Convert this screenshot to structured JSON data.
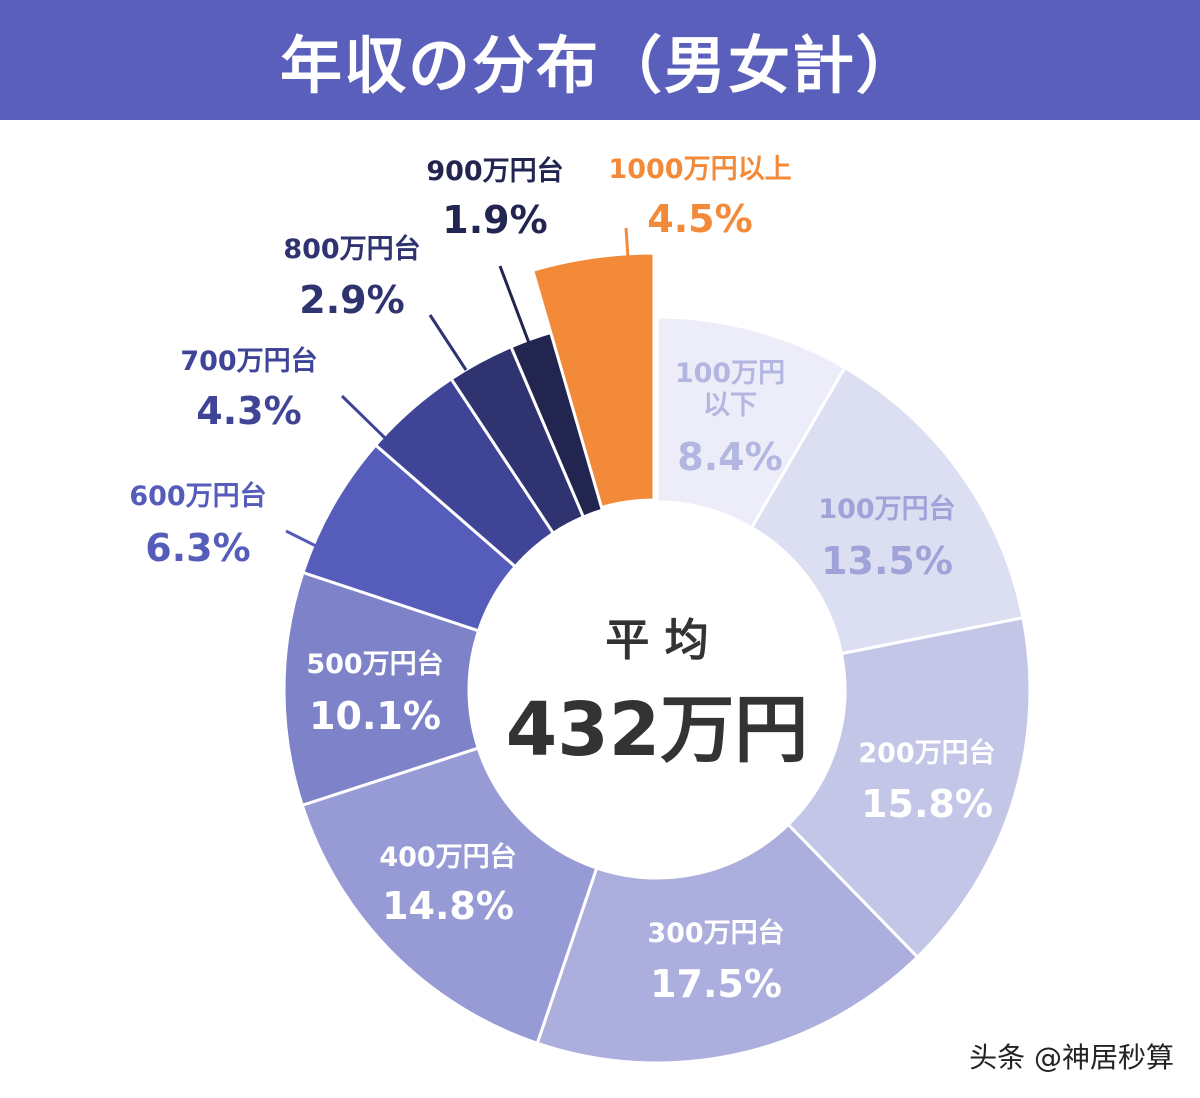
{
  "header": {
    "title": "年収の分布（男女計）"
  },
  "center": {
    "label": "平 均",
    "value": "432万円"
  },
  "watermark": "头条 @神居秒算",
  "chart_data": {
    "type": "pie",
    "variant": "donut",
    "unit": "%",
    "slices": [
      {
        "category": "100万円以下",
        "label_lines": [
          "100万円",
          "以下"
        ],
        "value": 8.4,
        "value_label": "8.4%",
        "color": "#ecedf8",
        "label_color": "#b3b6e0"
      },
      {
        "category": "100万円台",
        "label_lines": [
          "100万円台"
        ],
        "value": 13.5,
        "value_label": "13.5%",
        "color": "#dcdef2",
        "label_color": "#9fa3d8"
      },
      {
        "category": "200万円台",
        "label_lines": [
          "200万円台"
        ],
        "value": 15.8,
        "value_label": "15.8%",
        "color": "#c4c6e8",
        "label_color": "#ffffff"
      },
      {
        "category": "300万円台",
        "label_lines": [
          "300万円台"
        ],
        "value": 17.5,
        "value_label": "17.5%",
        "color": "#acaedd",
        "label_color": "#ffffff"
      },
      {
        "category": "400万円台",
        "label_lines": [
          "400万円台"
        ],
        "value": 14.8,
        "value_label": "14.8%",
        "color": "#979bd5",
        "label_color": "#ffffff"
      },
      {
        "category": "500万円台",
        "label_lines": [
          "500万円台"
        ],
        "value": 10.1,
        "value_label": "10.1%",
        "color": "#7d82c9",
        "label_color": "#ffffff"
      },
      {
        "category": "600万円台",
        "label_lines": [
          "600万円台"
        ],
        "value": 6.3,
        "value_label": "6.3%",
        "color": "#565cb9",
        "label_color": "#565cb9"
      },
      {
        "category": "700万円台",
        "label_lines": [
          "700万円台"
        ],
        "value": 4.3,
        "value_label": "4.3%",
        "color": "#3f4497",
        "label_color": "#3f4497"
      },
      {
        "category": "800万円台",
        "label_lines": [
          "800万円台"
        ],
        "value": 2.9,
        "value_label": "2.9%",
        "color": "#2f336f",
        "label_color": "#2f336f"
      },
      {
        "category": "900万円台",
        "label_lines": [
          "900万円台"
        ],
        "value": 1.9,
        "value_label": "1.9%",
        "color": "#22254f",
        "label_color": "#22254f"
      },
      {
        "category": "1000万円以上",
        "label_lines": [
          "1000万円以上"
        ],
        "value": 4.5,
        "value_label": "4.5%",
        "color": "#f28a3a",
        "label_color": "#f28a3a",
        "exploded": true
      }
    ]
  }
}
